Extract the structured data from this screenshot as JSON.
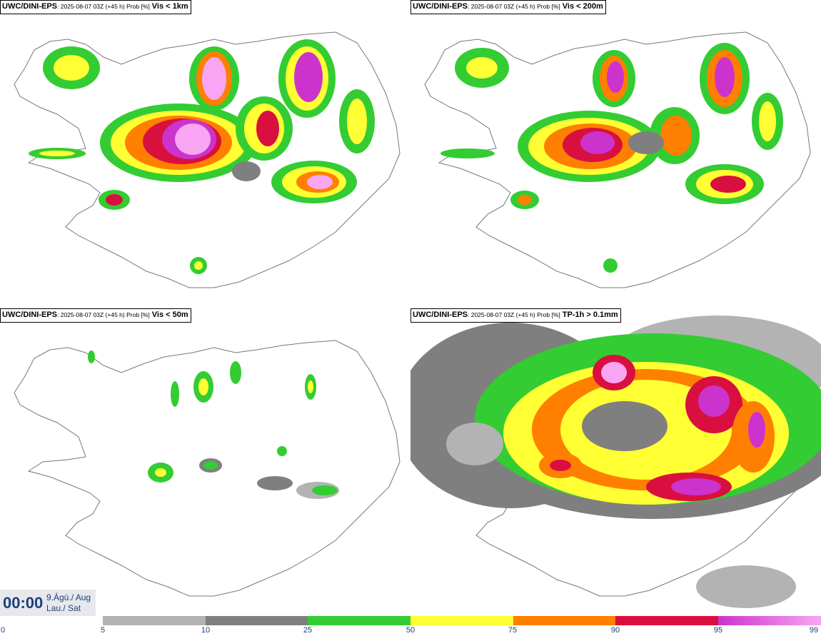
{
  "panels": [
    {
      "model": "UWC/DINI-EPS",
      "meta": ": 2025-08-07 03Z (+45 h) Prob [%]",
      "field": "Vis < 1km"
    },
    {
      "model": "UWC/DINI-EPS",
      "meta": ": 2025-08-07 03Z (+45 h) Prob [%]",
      "field": "Vis < 200m"
    },
    {
      "model": "UWC/DINI-EPS",
      "meta": ": 2025-08-07 03Z (+45 h) Prob [%]",
      "field": "Vis < 50m"
    },
    {
      "model": "UWC/DINI-EPS",
      "meta": ": 2025-08-07 03Z (+45 h) Prob [%]",
      "field": "TP-1h > 0.1mm"
    }
  ],
  "clock": {
    "time": "00:00",
    "date_line1": "9.Ágú./ Aug",
    "date_line2": "Lau./ Sat"
  },
  "legend": {
    "ticks": [
      "0",
      "5",
      "10",
      "25",
      "50",
      "75",
      "90",
      "95",
      "99"
    ],
    "colors": [
      "#b3b3b3",
      "#7f7f7f",
      "#33cc33",
      "#ffff33",
      "#ff7f00",
      "#d90f3f",
      "#cc33cc",
      "#f8a6f4"
    ]
  }
}
